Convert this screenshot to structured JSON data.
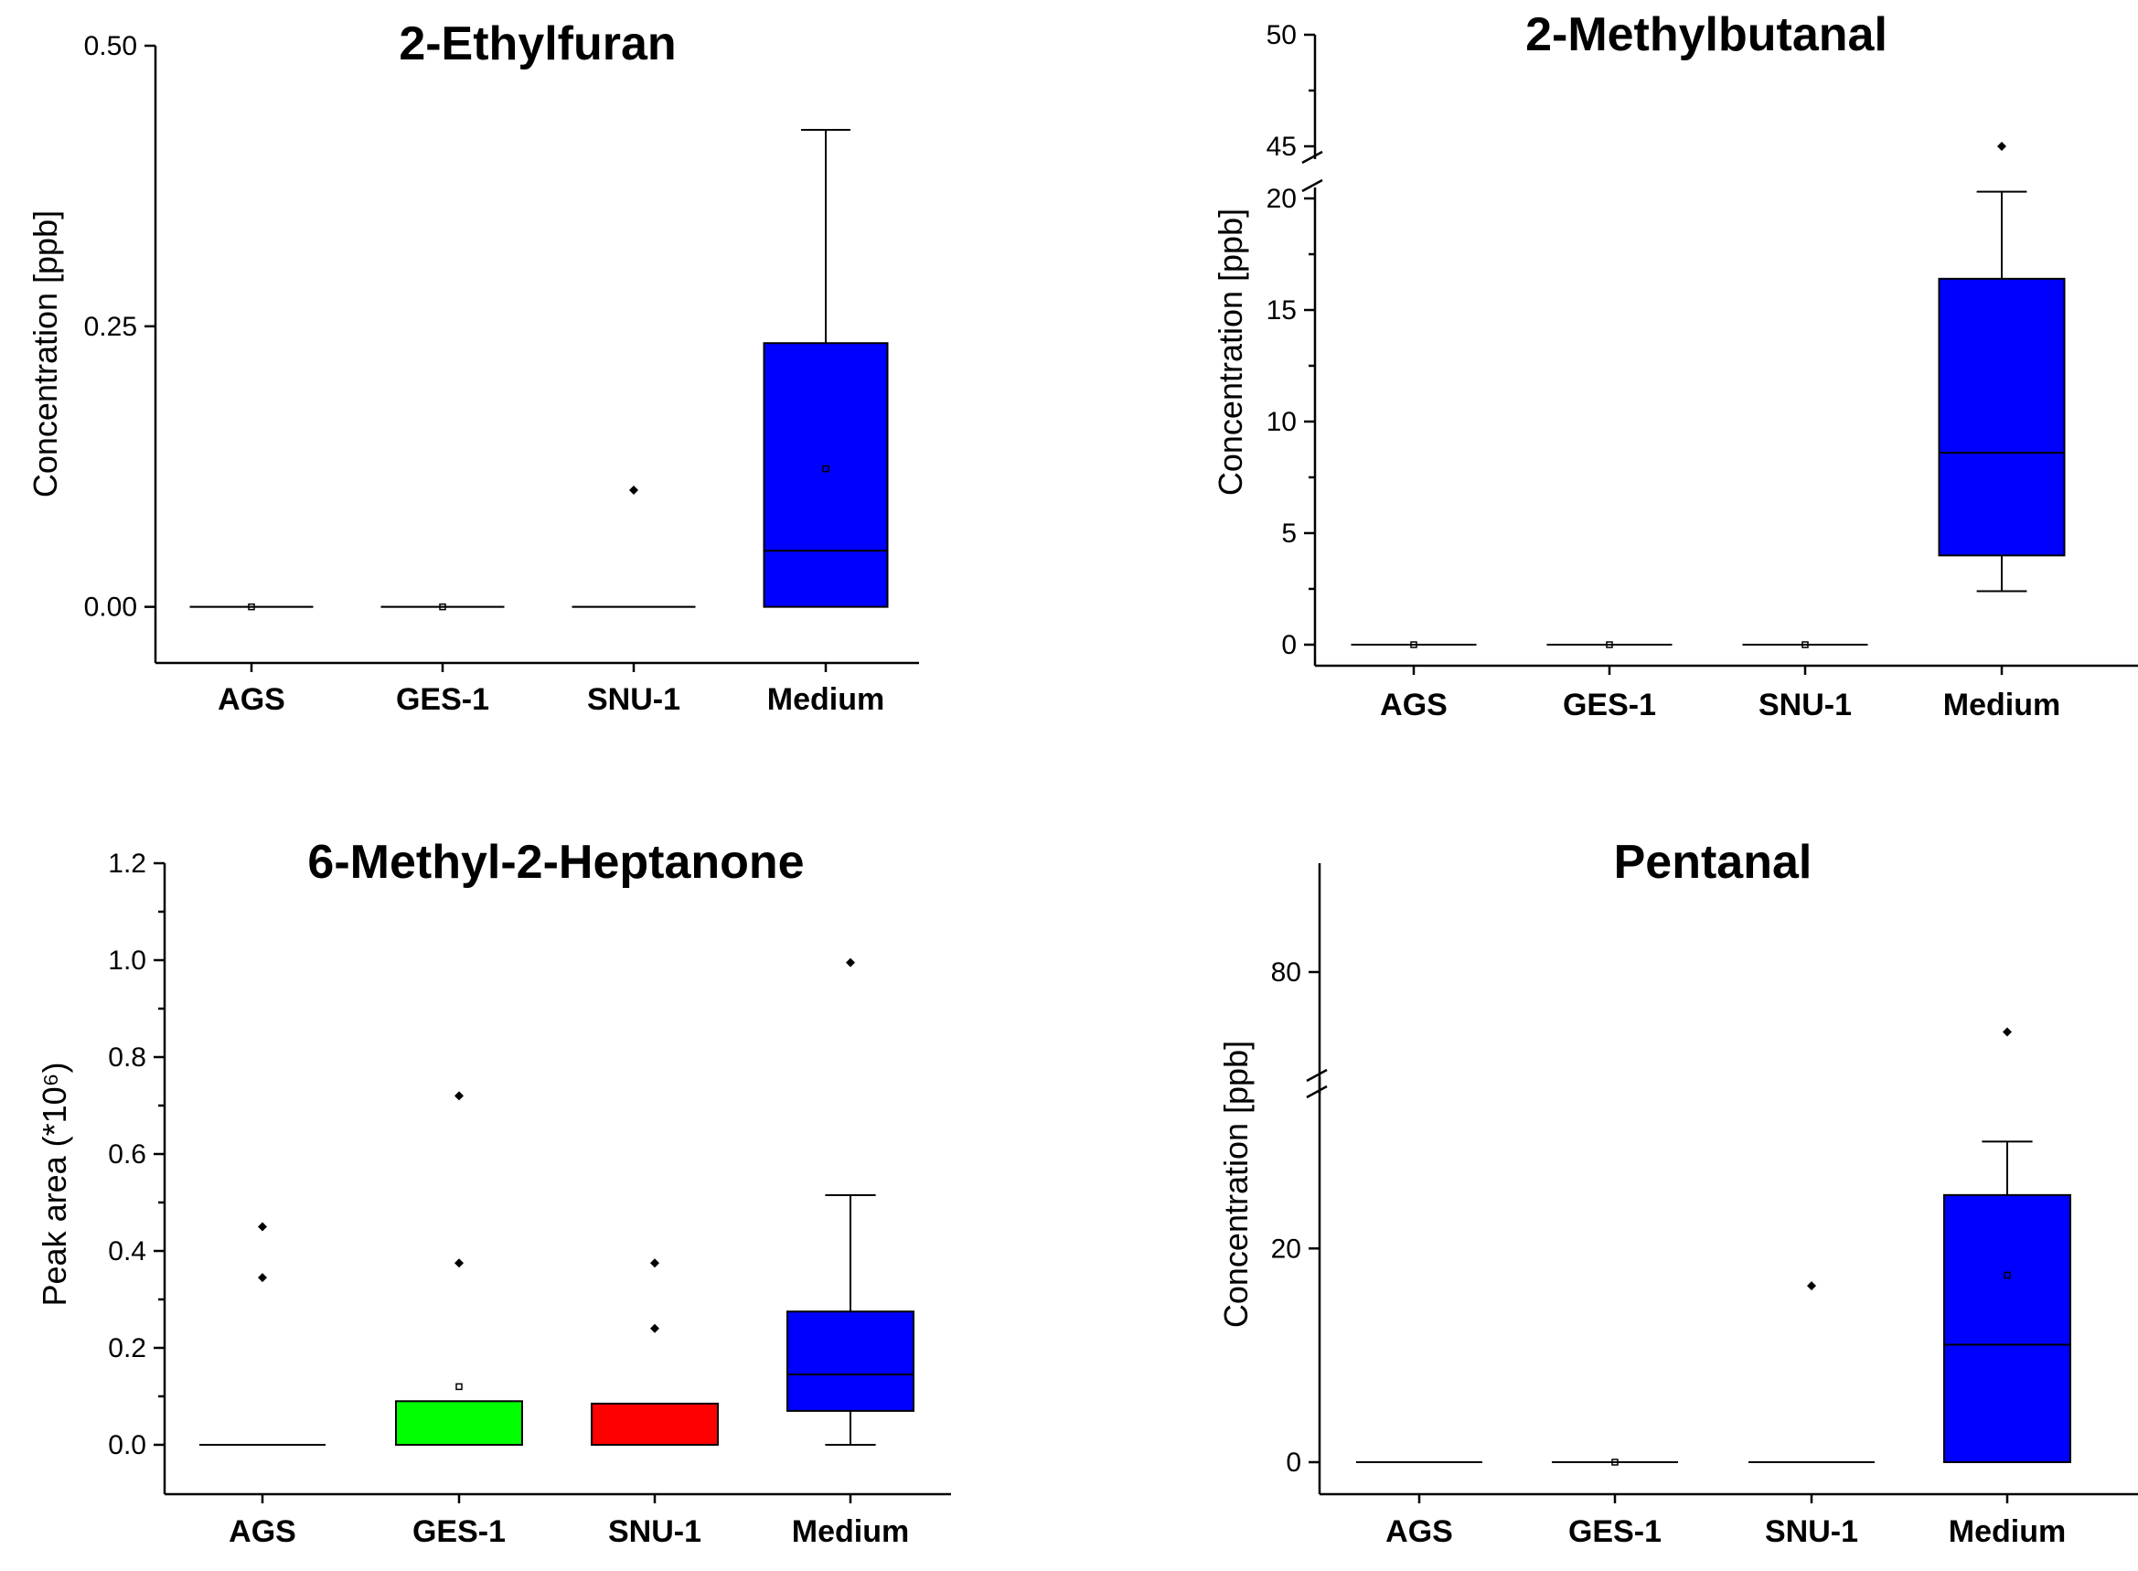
{
  "chart_data": [
    {
      "type": "box",
      "title": "2-Ethylfuran",
      "ylabel": "Concentration [ppb]",
      "ylim": [
        -0.05,
        0.52
      ],
      "yticks": [
        "0.00",
        "0.25",
        "0.50"
      ],
      "ytick_values": [
        0,
        0.25,
        0.5
      ],
      "categories": [
        "AGS",
        "GES-1",
        "SNU-1",
        "Medium"
      ],
      "boxes": [
        {
          "q1": 0,
          "median": 0,
          "q3": 0,
          "whisker_low": 0,
          "whisker_high": 0,
          "mean": 0,
          "outliers": [],
          "color": "#808080"
        },
        {
          "q1": 0,
          "median": 0,
          "q3": 0,
          "whisker_low": 0,
          "whisker_high": 0,
          "mean": 0,
          "outliers": [],
          "color": "#808080"
        },
        {
          "q1": 0,
          "median": 0,
          "q3": 0,
          "whisker_low": 0,
          "whisker_high": 0,
          "mean": null,
          "outliers": [
            0.104
          ],
          "color": "#808080"
        },
        {
          "q1": 0,
          "median": 0.05,
          "q3": 0.235,
          "whisker_low": 0,
          "whisker_high": 0.425,
          "mean": 0.123,
          "outliers": [],
          "color": "#0000ff"
        }
      ]
    },
    {
      "type": "box",
      "title": "2-Methylbutanal",
      "ylabel": "Concentration [ppb]",
      "ylim": [
        -1,
        50
      ],
      "axis_break": {
        "lower_max": 21,
        "upper_min": 44,
        "upper_max": 50
      },
      "yticks": [
        "0",
        "5",
        "10",
        "15",
        "20",
        "45",
        "50"
      ],
      "ytick_values": [
        0,
        5,
        10,
        15,
        20,
        45,
        50
      ],
      "categories": [
        "AGS",
        "GES-1",
        "SNU-1",
        "Medium"
      ],
      "boxes": [
        {
          "q1": 0,
          "median": 0,
          "q3": 0,
          "whisker_low": 0,
          "whisker_high": 0,
          "mean": 0,
          "outliers": [],
          "color": "#808080"
        },
        {
          "q1": 0,
          "median": 0,
          "q3": 0,
          "whisker_low": 0,
          "whisker_high": 0,
          "mean": 0,
          "outliers": [],
          "color": "#808080"
        },
        {
          "q1": 0,
          "median": 0,
          "q3": 0,
          "whisker_low": 0,
          "whisker_high": 0,
          "mean": 0,
          "outliers": [],
          "color": "#808080"
        },
        {
          "q1": 4,
          "median": 8.6,
          "q3": 16.4,
          "whisker_low": 2.4,
          "whisker_high": 20.3,
          "mean": null,
          "outliers": [
            45
          ],
          "color": "#0000ff"
        }
      ]
    },
    {
      "type": "box",
      "title": "6-Methyl-2-Heptanone",
      "ylabel": "Peak area (*10⁶)",
      "ylim": [
        -0.1,
        1.2
      ],
      "yticks": [
        "0.0",
        "0.2",
        "0.4",
        "0.6",
        "0.8",
        "1.0",
        "1.2"
      ],
      "ytick_values": [
        0,
        0.2,
        0.4,
        0.6,
        0.8,
        1.0,
        1.2
      ],
      "categories": [
        "AGS",
        "GES-1",
        "SNU-1",
        "Medium"
      ],
      "boxes": [
        {
          "q1": 0,
          "median": 0,
          "q3": 0,
          "whisker_low": 0,
          "whisker_high": 0,
          "mean": null,
          "outliers": [
            0.345,
            0.45
          ],
          "color": "#808080"
        },
        {
          "q1": 0,
          "median": 0,
          "q3": 0.09,
          "whisker_low": 0,
          "whisker_high": 0.09,
          "mean": 0.12,
          "outliers": [
            0.375,
            0.72
          ],
          "color": "#00ff00"
        },
        {
          "q1": 0,
          "median": 0,
          "q3": 0.085,
          "whisker_low": 0,
          "whisker_high": 0.085,
          "mean": null,
          "outliers": [
            0.24,
            0.375
          ],
          "color": "#ff0000"
        },
        {
          "q1": 0.07,
          "median": 0.145,
          "q3": 0.275,
          "whisker_low": 0,
          "whisker_high": 0.515,
          "mean": null,
          "outliers": [
            0.995
          ],
          "color": "#0000ff"
        }
      ]
    },
    {
      "type": "box",
      "title": "Pentanal",
      "ylabel": "Concentration [ppb]",
      "ylim": [
        -3,
        100
      ],
      "axis_break": {
        "lower_max": 35,
        "upper_min": 60,
        "upper_max": 100
      },
      "yticks": [
        "0",
        "20",
        "80"
      ],
      "ytick_values": [
        0,
        20,
        80
      ],
      "categories": [
        "AGS",
        "GES-1",
        "SNU-1",
        "Medium"
      ],
      "boxes": [
        {
          "q1": 0,
          "median": 0,
          "q3": 0,
          "whisker_low": 0,
          "whisker_high": 0,
          "mean": null,
          "outliers": [],
          "color": "#808080"
        },
        {
          "q1": 0,
          "median": 0,
          "q3": 0,
          "whisker_low": 0,
          "whisker_high": 0,
          "mean": 0,
          "outliers": [],
          "color": "#808080"
        },
        {
          "q1": 0,
          "median": 0,
          "q3": 0,
          "whisker_low": 0,
          "whisker_high": 0,
          "mean": null,
          "outliers": [
            16.5
          ],
          "color": "#808080"
        },
        {
          "q1": 0,
          "median": 11,
          "q3": 25,
          "whisker_low": 0,
          "whisker_high": 30,
          "mean": 17.5,
          "outliers": [
            69
          ],
          "color": "#0000ff"
        }
      ]
    }
  ]
}
